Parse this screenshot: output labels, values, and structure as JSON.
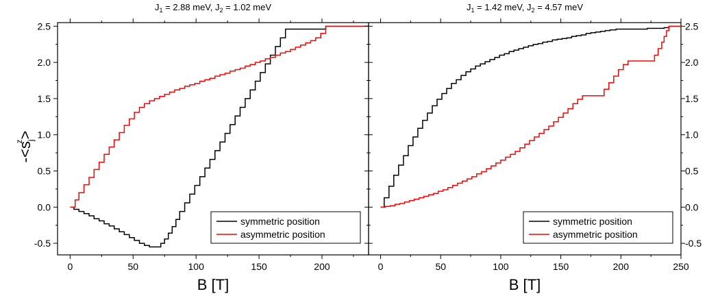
{
  "chart_data": [
    {
      "type": "line",
      "title_parts": [
        "J",
        "1",
        " = 2.88 meV, J",
        "2",
        " = 1.02 meV"
      ],
      "xlabel": "B [T]",
      "ylabel_parts": [
        "-<s",
        "j",
        "z",
        ">"
      ],
      "xlim": [
        -10,
        237
      ],
      "ylim": [
        -0.66,
        2.55
      ],
      "x_ticks": [
        0,
        50,
        100,
        150,
        200
      ],
      "x_tick_labels": [
        "0",
        "50",
        "100",
        "150",
        "200"
      ],
      "y_ticks": [
        -0.5,
        0.0,
        0.5,
        1.0,
        1.5,
        2.0,
        2.5
      ],
      "y_tick_labels": [
        "-0.5",
        "0.0",
        "0.5",
        "1.0",
        "1.5",
        "2.0",
        "2.5"
      ],
      "legend_position": "bottom-right",
      "series": [
        {
          "name": "symmetric position",
          "color": "#000000",
          "step": true,
          "points": [
            [
              0,
              0
            ],
            [
              3,
              -0.03
            ],
            [
              7,
              -0.06
            ],
            [
              11,
              -0.09
            ],
            [
              15,
              -0.12
            ],
            [
              19,
              -0.16
            ],
            [
              23,
              -0.19
            ],
            [
              27,
              -0.23
            ],
            [
              31,
              -0.26
            ],
            [
              35,
              -0.3
            ],
            [
              39,
              -0.34
            ],
            [
              43,
              -0.38
            ],
            [
              47,
              -0.42
            ],
            [
              51,
              -0.46
            ],
            [
              55,
              -0.5
            ],
            [
              59,
              -0.53
            ],
            [
              63,
              -0.55
            ],
            [
              70,
              -0.55
            ],
            [
              72,
              -0.5
            ],
            [
              75,
              -0.44
            ],
            [
              78,
              -0.36
            ],
            [
              81,
              -0.27
            ],
            [
              84,
              -0.17
            ],
            [
              87,
              -0.06
            ],
            [
              91,
              0.06
            ],
            [
              95,
              0.18
            ],
            [
              99,
              0.3
            ],
            [
              103,
              0.42
            ],
            [
              107,
              0.54
            ],
            [
              111,
              0.66
            ],
            [
              115,
              0.78
            ],
            [
              119,
              0.9
            ],
            [
              123,
              1.02
            ],
            [
              127,
              1.14
            ],
            [
              131,
              1.26
            ],
            [
              135,
              1.38
            ],
            [
              139,
              1.5
            ],
            [
              143,
              1.62
            ],
            [
              147,
              1.74
            ],
            [
              151,
              1.86
            ],
            [
              155,
              1.98
            ],
            [
              159,
              2.1
            ],
            [
              163,
              2.22
            ],
            [
              167,
              2.34
            ],
            [
              171,
              2.46
            ],
            [
              203,
              2.5
            ],
            [
              237,
              2.5
            ]
          ]
        },
        {
          "name": "asymmetric position",
          "color": "#ff0000",
          "step": true,
          "points": [
            [
              0,
              0
            ],
            [
              4,
              0.1
            ],
            [
              7,
              0.2
            ],
            [
              11,
              0.31
            ],
            [
              15,
              0.41
            ],
            [
              19,
              0.52
            ],
            [
              23,
              0.62
            ],
            [
              27,
              0.73
            ],
            [
              31,
              0.83
            ],
            [
              35,
              0.93
            ],
            [
              39,
              1.03
            ],
            [
              43,
              1.13
            ],
            [
              47,
              1.22
            ],
            [
              51,
              1.31
            ],
            [
              55,
              1.38
            ],
            [
              59,
              1.43
            ],
            [
              63,
              1.47
            ],
            [
              67,
              1.5
            ],
            [
              71,
              1.53
            ],
            [
              75,
              1.56
            ],
            [
              79,
              1.59
            ],
            [
              83,
              1.62
            ],
            [
              87,
              1.64
            ],
            [
              91,
              1.67
            ],
            [
              95,
              1.69
            ],
            [
              99,
              1.71
            ],
            [
              103,
              1.74
            ],
            [
              107,
              1.76
            ],
            [
              111,
              1.78
            ],
            [
              115,
              1.81
            ],
            [
              119,
              1.83
            ],
            [
              123,
              1.85
            ],
            [
              127,
              1.88
            ],
            [
              131,
              1.9
            ],
            [
              135,
              1.92
            ],
            [
              139,
              1.95
            ],
            [
              143,
              1.97
            ],
            [
              147,
              2.0
            ],
            [
              151,
              2.02
            ],
            [
              155,
              2.05
            ],
            [
              159,
              2.07
            ],
            [
              163,
              2.1
            ],
            [
              167,
              2.13
            ],
            [
              171,
              2.15
            ],
            [
              175,
              2.18
            ],
            [
              179,
              2.21
            ],
            [
              183,
              2.24
            ],
            [
              187,
              2.27
            ],
            [
              191,
              2.3
            ],
            [
              195,
              2.34
            ],
            [
              199,
              2.4
            ],
            [
              203,
              2.5
            ],
            [
              237,
              2.5
            ]
          ]
        }
      ]
    },
    {
      "type": "line",
      "title_parts": [
        "J",
        "1",
        " = 1.42 meV, J",
        "2",
        " = 4.57 meV"
      ],
      "xlabel": "B [T]",
      "xlim": [
        -10,
        250
      ],
      "ylim": [
        -0.66,
        2.55
      ],
      "x_ticks": [
        0,
        50,
        100,
        150,
        200,
        250
      ],
      "x_tick_labels": [
        "0",
        "50",
        "100",
        "150",
        "200",
        "250"
      ],
      "y_ticks": [
        -0.5,
        0.0,
        0.5,
        1.0,
        1.5,
        2.0,
        2.5
      ],
      "y_tick_labels": [
        "-0.5",
        "0.0",
        "0.5",
        "1.0",
        "1.5",
        "2.0",
        "2.5"
      ],
      "legend_position": "bottom-right",
      "series": [
        {
          "name": "symmetric position",
          "color": "#000000",
          "step": true,
          "points": [
            [
              0,
              0
            ],
            [
              3,
              0.13
            ],
            [
              7,
              0.29
            ],
            [
              11,
              0.44
            ],
            [
              15,
              0.58
            ],
            [
              19,
              0.71
            ],
            [
              23,
              0.85
            ],
            [
              27,
              0.97
            ],
            [
              31,
              1.09
            ],
            [
              35,
              1.2
            ],
            [
              39,
              1.3
            ],
            [
              43,
              1.4
            ],
            [
              47,
              1.49
            ],
            [
              51,
              1.57
            ],
            [
              55,
              1.64
            ],
            [
              59,
              1.71
            ],
            [
              63,
              1.76
            ],
            [
              67,
              1.82
            ],
            [
              71,
              1.87
            ],
            [
              75,
              1.91
            ],
            [
              79,
              1.95
            ],
            [
              83,
              1.98
            ],
            [
              87,
              2.01
            ],
            [
              91,
              2.04
            ],
            [
              95,
              2.07
            ],
            [
              99,
              2.1
            ],
            [
              103,
              2.12
            ],
            [
              107,
              2.15
            ],
            [
              111,
              2.17
            ],
            [
              115,
              2.19
            ],
            [
              119,
              2.21
            ],
            [
              123,
              2.23
            ],
            [
              127,
              2.25
            ],
            [
              131,
              2.26
            ],
            [
              135,
              2.28
            ],
            [
              139,
              2.29
            ],
            [
              143,
              2.31
            ],
            [
              147,
              2.32
            ],
            [
              151,
              2.33
            ],
            [
              155,
              2.34
            ],
            [
              159,
              2.36
            ],
            [
              163,
              2.37
            ],
            [
              167,
              2.38
            ],
            [
              171,
              2.4
            ],
            [
              175,
              2.41
            ],
            [
              179,
              2.42
            ],
            [
              183,
              2.43
            ],
            [
              187,
              2.44
            ],
            [
              191,
              2.45
            ],
            [
              196,
              2.46
            ],
            [
              222,
              2.47
            ],
            [
              236,
              2.48
            ],
            [
              240,
              2.5
            ],
            [
              250,
              2.5
            ]
          ]
        },
        {
          "name": "asymmetric position",
          "color": "#ff0000",
          "step": true,
          "points": [
            [
              0,
              0
            ],
            [
              4,
              0.01
            ],
            [
              8,
              0.02
            ],
            [
              12,
              0.04
            ],
            [
              16,
              0.05
            ],
            [
              20,
              0.07
            ],
            [
              24,
              0.09
            ],
            [
              28,
              0.11
            ],
            [
              32,
              0.13
            ],
            [
              36,
              0.15
            ],
            [
              40,
              0.17
            ],
            [
              44,
              0.19
            ],
            [
              48,
              0.22
            ],
            [
              52,
              0.24
            ],
            [
              56,
              0.27
            ],
            [
              60,
              0.3
            ],
            [
              64,
              0.33
            ],
            [
              68,
              0.36
            ],
            [
              72,
              0.39
            ],
            [
              76,
              0.42
            ],
            [
              80,
              0.46
            ],
            [
              84,
              0.49
            ],
            [
              88,
              0.53
            ],
            [
              92,
              0.57
            ],
            [
              96,
              0.61
            ],
            [
              100,
              0.65
            ],
            [
              104,
              0.69
            ],
            [
              108,
              0.73
            ],
            [
              112,
              0.77
            ],
            [
              116,
              0.82
            ],
            [
              120,
              0.87
            ],
            [
              124,
              0.92
            ],
            [
              128,
              0.97
            ],
            [
              132,
              1.02
            ],
            [
              136,
              1.07
            ],
            [
              140,
              1.12
            ],
            [
              144,
              1.18
            ],
            [
              148,
              1.24
            ],
            [
              152,
              1.3
            ],
            [
              156,
              1.36
            ],
            [
              160,
              1.43
            ],
            [
              164,
              1.49
            ],
            [
              168,
              1.54
            ],
            [
              186,
              1.63
            ],
            [
              190,
              1.72
            ],
            [
              194,
              1.81
            ],
            [
              198,
              1.9
            ],
            [
              202,
              1.97
            ],
            [
              206,
              2.02
            ],
            [
              228,
              2.1
            ],
            [
              231,
              2.19
            ],
            [
              234,
              2.28
            ],
            [
              236,
              2.36
            ],
            [
              238,
              2.44
            ],
            [
              240,
              2.5
            ],
            [
              250,
              2.5
            ]
          ]
        }
      ]
    }
  ]
}
